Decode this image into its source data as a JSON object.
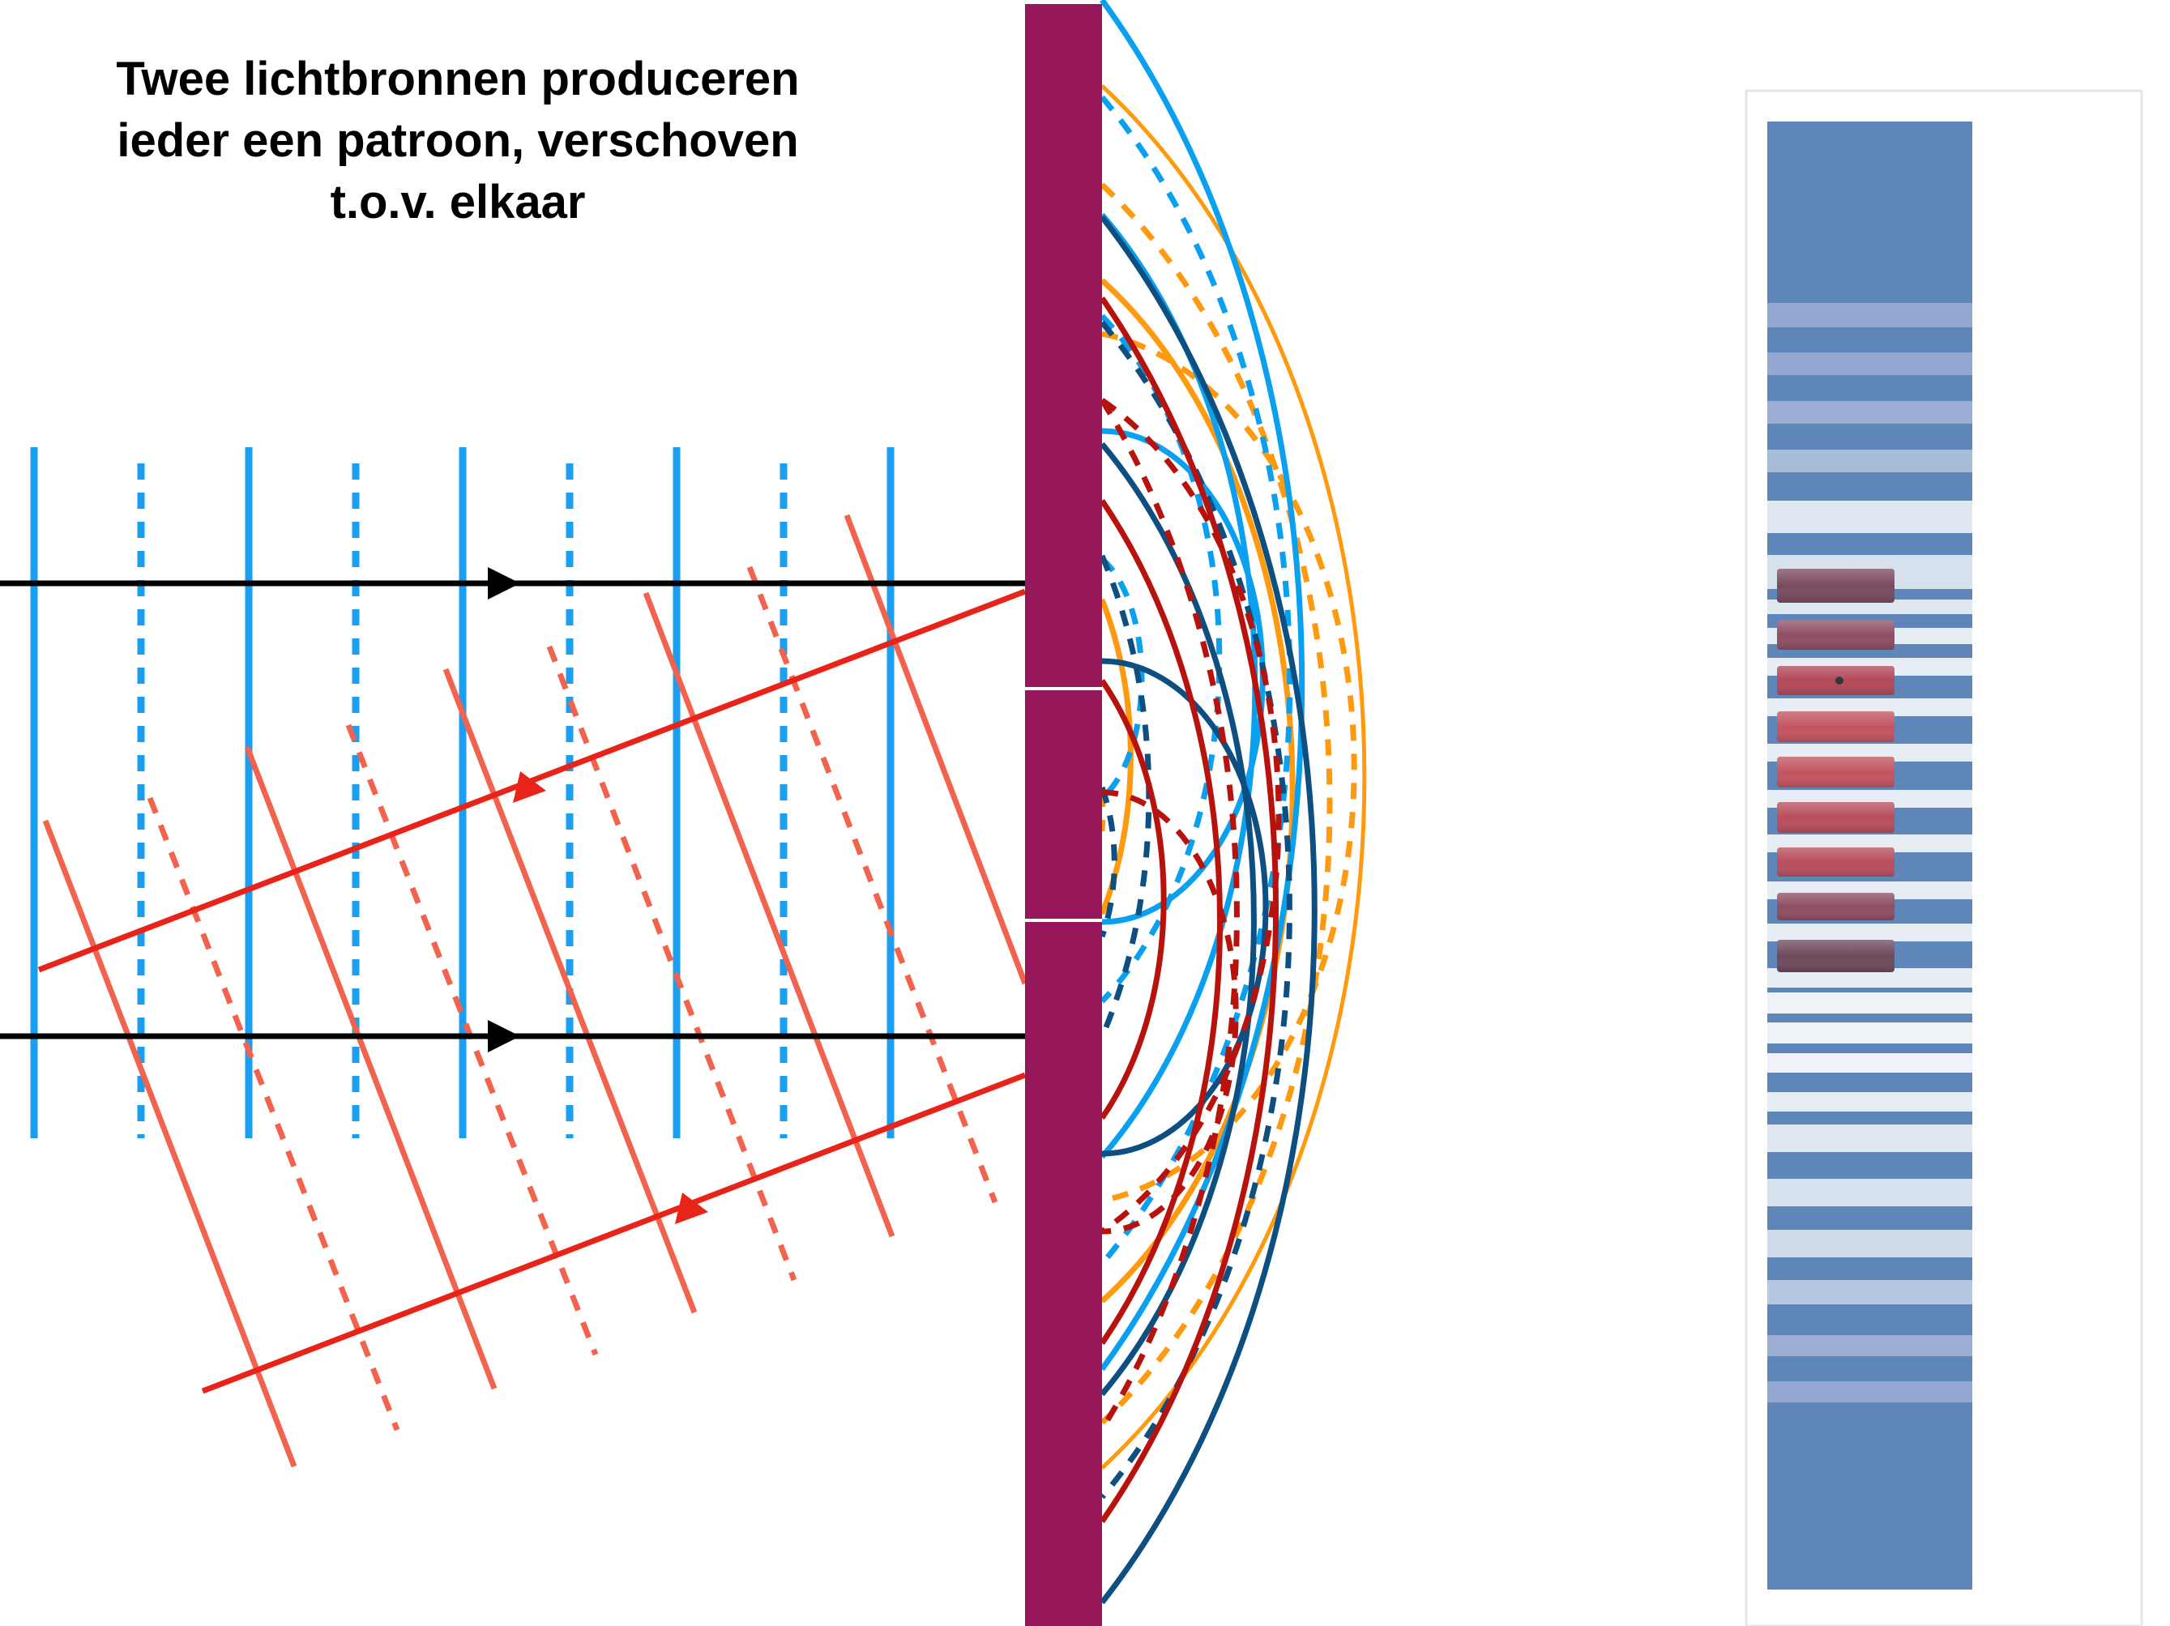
{
  "title": {
    "lines": [
      "Twee lichtbronnen produceren",
      "ieder een patroon, verschoven",
      "t.o.v. elkaar"
    ]
  },
  "colors": {
    "wave_blue": "#1a9ef0",
    "wave_red": "#f2624d",
    "ray_red": "#e8241a",
    "ray_black": "#000000",
    "barrier": "#96185a",
    "arc_orange": "#ff9a0e",
    "arc_light_blue": "#0aa0f0",
    "arc_dark_blue": "#0e4f82",
    "arc_dark_red": "#b8120c",
    "screen_blue": "#5e86b8",
    "band_red": "#c2545f"
  }
}
